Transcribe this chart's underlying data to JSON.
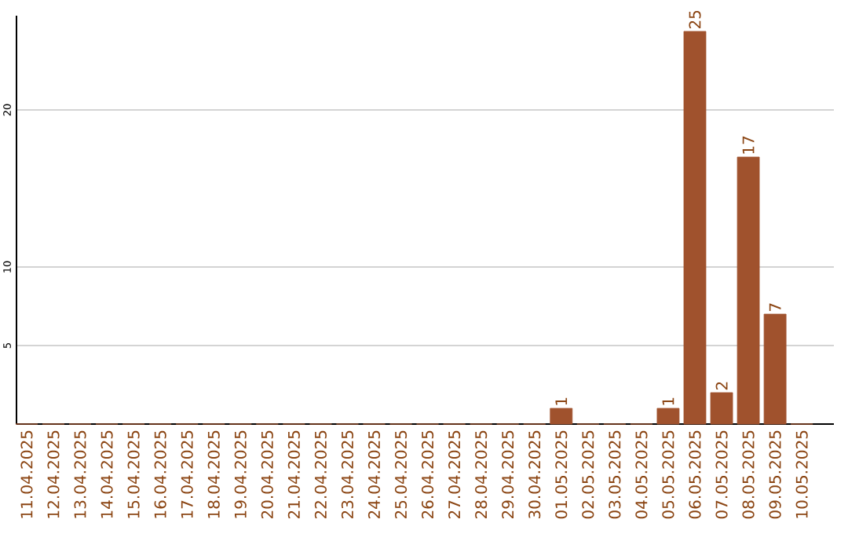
{
  "chart_data": {
    "type": "bar",
    "categories": [
      "11.04.2025",
      "12.04.2025",
      "13.04.2025",
      "14.04.2025",
      "15.04.2025",
      "16.04.2025",
      "17.04.2025",
      "18.04.2025",
      "19.04.2025",
      "20.04.2025",
      "21.04.2025",
      "22.04.2025",
      "23.04.2025",
      "24.04.2025",
      "25.04.2025",
      "26.04.2025",
      "27.04.2025",
      "28.04.2025",
      "29.04.2025",
      "30.04.2025",
      "01.05.2025",
      "02.05.2025",
      "03.05.2025",
      "04.05.2025",
      "05.05.2025",
      "06.05.2025",
      "07.05.2025",
      "08.05.2025",
      "09.05.2025",
      "10.05.2025"
    ],
    "values": [
      0,
      0,
      0,
      0,
      0,
      0,
      0,
      0,
      0,
      0,
      0,
      0,
      0,
      0,
      0,
      0,
      0,
      0,
      0,
      0,
      1,
      0,
      0,
      0,
      1,
      25,
      2,
      17,
      7,
      0
    ],
    "value_labels": [
      null,
      null,
      null,
      null,
      null,
      null,
      null,
      null,
      null,
      null,
      null,
      null,
      null,
      null,
      null,
      null,
      null,
      null,
      null,
      null,
      "1",
      null,
      null,
      null,
      "1",
      "25",
      "2",
      "17",
      "7",
      null
    ],
    "color": "#a0522d",
    "ylim": [
      0,
      26
    ],
    "yticks": [
      5,
      10,
      20
    ],
    "grid": "y"
  }
}
